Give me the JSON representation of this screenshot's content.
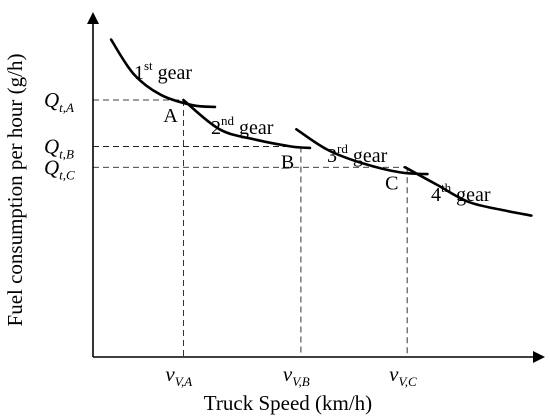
{
  "chart_data": {
    "type": "line",
    "xlabel": "Truck Speed (km/h)",
    "ylabel": "Fuel consumption per hour (g/h)",
    "xlim": [
      0,
      100
    ],
    "ylim": [
      0,
      100
    ],
    "grid": false,
    "series": [
      {
        "name": "1st gear",
        "sup_base": "1",
        "sup": "st",
        "rest": " gear",
        "points": [
          [
            4,
            92
          ],
          [
            9,
            82
          ],
          [
            15,
            76
          ],
          [
            22,
            73
          ],
          [
            27,
            72.5
          ]
        ]
      },
      {
        "name": "2nd gear",
        "sup_base": "2",
        "sup": "nd",
        "rest": " gear",
        "points": [
          [
            20,
            74.5
          ],
          [
            28,
            66
          ],
          [
            36,
            63
          ],
          [
            44,
            61
          ],
          [
            48,
            60.6
          ]
        ]
      },
      {
        "name": "3rd gear",
        "sup_base": "3",
        "sup": "rd",
        "rest": " gear",
        "points": [
          [
            45,
            66
          ],
          [
            52,
            60
          ],
          [
            60,
            56
          ],
          [
            68,
            53.5
          ],
          [
            74,
            53
          ]
        ]
      },
      {
        "name": "4th gear",
        "sup_base": "4",
        "sup": "th",
        "rest": " gear",
        "points": [
          [
            69,
            55
          ],
          [
            76,
            50
          ],
          [
            83,
            45
          ],
          [
            91,
            42.5
          ],
          [
            97,
            41
          ]
        ]
      }
    ],
    "points": [
      {
        "label": "A",
        "x": 20,
        "y": 74.5,
        "x_tick": "V,A",
        "y_tick": "t,A"
      },
      {
        "label": "B",
        "x": 46,
        "y": 61,
        "x_tick": "V,B",
        "y_tick": "t,B"
      },
      {
        "label": "C",
        "x": 69.5,
        "y": 55,
        "x_tick": "V,C",
        "y_tick": "t,C"
      }
    ],
    "x_tick_symbol": "v",
    "y_tick_symbol": "Q"
  }
}
